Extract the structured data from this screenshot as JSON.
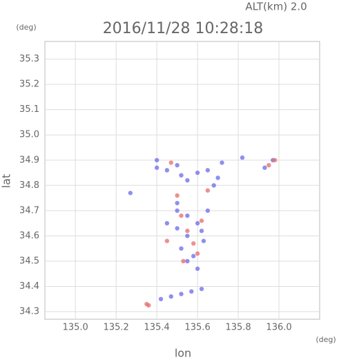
{
  "chart_data": {
    "type": "scatter",
    "title": "2016/11/28 10:28:18",
    "annotation": "ALT(km) 2.0",
    "x_unit": "(deg)",
    "y_unit": "(deg)",
    "xlabel": "lon",
    "ylabel": "lat",
    "xlim": [
      134.85,
      136.2
    ],
    "ylim": [
      34.27,
      35.37
    ],
    "xticks": [
      {
        "value": 135,
        "label": "135.0"
      },
      135.2,
      135.4,
      135.6,
      135.8,
      {
        "value": 136,
        "label": "136.0"
      }
    ],
    "yticks": [
      34.3,
      34.4,
      34.5,
      34.6,
      34.7,
      34.8,
      34.9,
      {
        "value": 35,
        "label": "35.0"
      },
      35.1,
      35.2,
      35.3
    ],
    "grid": true,
    "series": [
      {
        "color": "#6a6ae8",
        "x": [
          135.4,
          135.45,
          135.5,
          135.52,
          135.55,
          135.6,
          135.65,
          135.7,
          135.68,
          135.72,
          135.82,
          135.93,
          135.97,
          135.27,
          135.5,
          135.55,
          135.6,
          135.62,
          135.55,
          135.5,
          135.45,
          135.52,
          135.58,
          135.55,
          135.6,
          135.63,
          135.5,
          135.65,
          135.42,
          135.47,
          135.52,
          135.57,
          135.62,
          135.4
        ],
        "values": [
          34.87,
          34.86,
          34.88,
          34.84,
          34.82,
          34.85,
          34.86,
          34.83,
          34.8,
          34.89,
          34.91,
          34.87,
          34.9,
          34.77,
          34.7,
          34.68,
          34.65,
          34.62,
          34.6,
          34.63,
          34.65,
          34.55,
          34.52,
          34.5,
          34.47,
          34.58,
          34.73,
          34.7,
          34.35,
          34.36,
          34.37,
          34.38,
          34.39,
          34.9
        ]
      },
      {
        "color": "#e86a6a",
        "x": [
          135.35,
          135.36,
          135.45,
          135.52,
          135.55,
          135.58,
          135.6,
          135.53,
          135.62,
          135.98,
          135.95,
          135.5,
          135.47,
          135.65
        ],
        "values": [
          34.33,
          34.325,
          34.58,
          34.68,
          34.62,
          34.57,
          34.53,
          34.5,
          34.66,
          34.9,
          34.88,
          34.76,
          34.89,
          34.78
        ]
      }
    ]
  }
}
